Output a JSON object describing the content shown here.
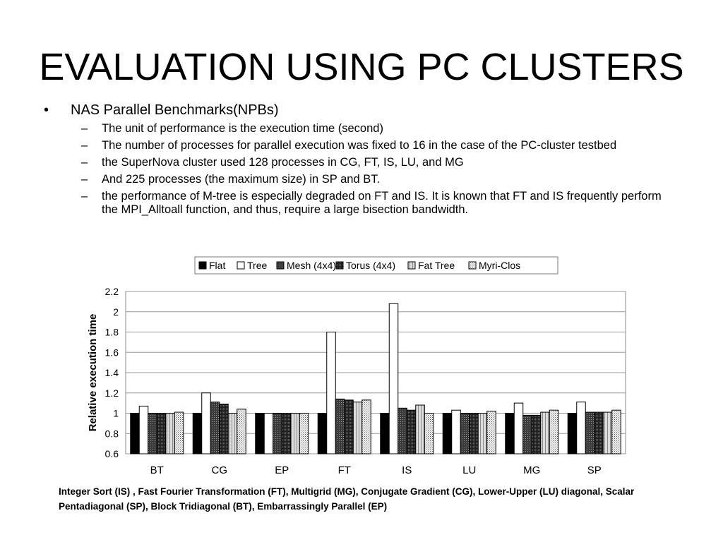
{
  "slide": {
    "title": "EVALUATION USING PC CLUSTERS",
    "bullet": {
      "marker": "•",
      "text": "NAS Parallel Benchmarks(NPBs)",
      "subitems": [
        {
          "marker": "–",
          "text": "The unit of performance is the execution time (second)"
        },
        {
          "marker": "–",
          "text": "The number of processes for parallel execution was fixed to 16 in the case of the PC-cluster testbed"
        },
        {
          "marker": "–",
          "text": "the SuperNova cluster used 128 processes in CG, FT, IS, LU, and MG"
        },
        {
          "marker": "–",
          "text": "And 225 processes (the maximum size) in SP and BT."
        },
        {
          "marker": "–",
          "text": "the performance of M-tree is especially degraded on FT and IS. It is known that FT and IS frequently perform the MPI_Alltoall function, and thus, require a large bisection bandwidth."
        }
      ]
    },
    "footnote": "Integer Sort (IS) , Fast Fourier Transformation (FT), Multigrid (MG), Conjugate Gradient (CG), Lower-Upper (LU) diagonal, Scalar Pentadiagonal (SP), Block Tridiagonal (BT), Embarrassingly Parallel (EP)"
  },
  "chart_data": {
    "type": "bar",
    "title": "",
    "xlabel": "",
    "ylabel": "Relative execution time",
    "ylim": [
      0.6,
      2.2
    ],
    "yticks": [
      "0.6",
      "0.8",
      "1",
      "1.2",
      "1.4",
      "1.6",
      "1.8",
      "2",
      "2.2"
    ],
    "grid": true,
    "legend_position": "top",
    "categories": [
      "BT",
      "CG",
      "EP",
      "FT",
      "IS",
      "LU",
      "MG",
      "SP"
    ],
    "series": [
      {
        "name": "Flat",
        "pattern": "solid-black",
        "values": [
          1.0,
          1.0,
          1.0,
          1.0,
          1.0,
          1.0,
          1.0,
          1.0
        ]
      },
      {
        "name": "Tree",
        "pattern": "white",
        "values": [
          1.07,
          1.2,
          1.0,
          1.8,
          2.08,
          1.03,
          1.1,
          1.11
        ]
      },
      {
        "name": "Mesh (4x4)",
        "pattern": "dark-grid",
        "values": [
          1.0,
          1.11,
          1.0,
          1.14,
          1.05,
          1.0,
          0.98,
          1.01
        ]
      },
      {
        "name": "Torus (4x4)",
        "pattern": "dark-dots",
        "values": [
          1.0,
          1.09,
          1.0,
          1.13,
          1.03,
          1.0,
          0.98,
          1.01
        ]
      },
      {
        "name": "Fat Tree",
        "pattern": "light-hatch",
        "values": [
          1.0,
          1.0,
          1.0,
          1.11,
          1.08,
          1.0,
          1.01,
          1.01
        ]
      },
      {
        "name": "Myri-Clos",
        "pattern": "light-dots",
        "values": [
          1.01,
          1.04,
          1.0,
          1.13,
          1.0,
          1.02,
          1.03,
          1.03
        ]
      }
    ]
  }
}
